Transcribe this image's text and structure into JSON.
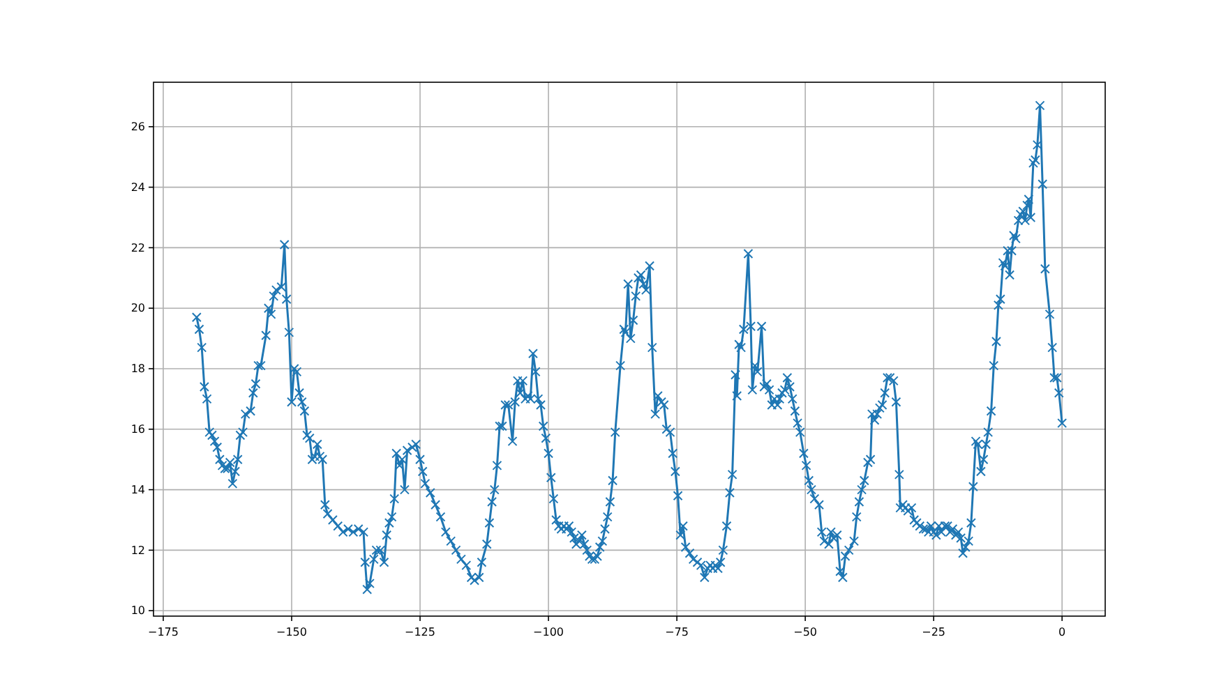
{
  "chart_data": {
    "type": "line",
    "x": [
      -168.5,
      -168,
      -167.5,
      -167,
      -166.5,
      -166,
      -165.5,
      -165,
      -164.5,
      -164,
      -163.5,
      -163,
      -162.5,
      -162,
      -161.5,
      -161,
      -160.5,
      -160,
      -159.5,
      -159,
      -158,
      -157.5,
      -157,
      -156.5,
      -156,
      -155,
      -154.5,
      -154,
      -153.5,
      -153,
      -152,
      -151.4,
      -151,
      -150.5,
      -150,
      -149.5,
      -149,
      -148.5,
      -148,
      -147.5,
      -147,
      -146.5,
      -146,
      -145.5,
      -145,
      -144.5,
      -144,
      -143.5,
      -143,
      -142,
      -141,
      -140,
      -139,
      -138,
      -137,
      -136,
      -135.7,
      -135.3,
      -134.8,
      -134,
      -133.5,
      -132.7,
      -132,
      -131.5,
      -131,
      -130.5,
      -130,
      -129.6,
      -129,
      -128.5,
      -128,
      -127.5,
      -126.5,
      -125.8,
      -125,
      -124.5,
      -124,
      -123,
      -122,
      -121,
      -120,
      -119,
      -118,
      -117,
      -116,
      -115,
      -114.4,
      -113.5,
      -113,
      -112,
      -111.5,
      -111,
      -110.5,
      -110,
      -109.5,
      -109,
      -108.4,
      -107.8,
      -107,
      -106.5,
      -106,
      -105.5,
      -105,
      -104.5,
      -104,
      -103.5,
      -103,
      -102.5,
      -102,
      -101.5,
      -101,
      -100.5,
      -100,
      -99.5,
      -99,
      -98.5,
      -98,
      -97.5,
      -97,
      -96.5,
      -96,
      -95.5,
      -95,
      -94.6,
      -94,
      -93.5,
      -93,
      -92.5,
      -92,
      -91.5,
      -91,
      -90.5,
      -90,
      -89.5,
      -89,
      -88.5,
      -88,
      -87.5,
      -87,
      -86,
      -85.3,
      -85,
      -84.5,
      -84,
      -83.5,
      -83,
      -82.5,
      -82,
      -81.5,
      -81,
      -80.3,
      -79.8,
      -79.2,
      -78.7,
      -78,
      -77.5,
      -77,
      -76.3,
      -75.8,
      -75.3,
      -74.8,
      -74.3,
      -73.8,
      -73.3,
      -72.5,
      -71.8,
      -71,
      -70.3,
      -69.6,
      -69,
      -68.5,
      -68,
      -67.5,
      -67,
      -66.5,
      -66,
      -65.3,
      -64.7,
      -64.2,
      -63.6,
      -63.3,
      -62.9,
      -62.5,
      -62,
      -61.1,
      -60.6,
      -60.3,
      -59.8,
      -59.3,
      -58.5,
      -58,
      -57.5,
      -57,
      -56.5,
      -56,
      -55.4,
      -55,
      -54.5,
      -54,
      -53.5,
      -53,
      -52.5,
      -52,
      -51.5,
      -51,
      -50.3,
      -49.8,
      -49.3,
      -48.8,
      -48.2,
      -47.3,
      -46.8,
      -46.3,
      -45.4,
      -45,
      -44.5,
      -43.8,
      -43.2,
      -42.7,
      -42.2,
      -41.5,
      -40.5,
      -40,
      -39.5,
      -39,
      -38.5,
      -37.8,
      -37.3,
      -37,
      -36.5,
      -36,
      -35.5,
      -35,
      -34.5,
      -34,
      -33.5,
      -32.8,
      -32.3,
      -31.7,
      -31.5,
      -31,
      -30.5,
      -30,
      -29.3,
      -28.8,
      -28.3,
      -27.7,
      -27,
      -26.5,
      -26,
      -25.5,
      -25,
      -24.5,
      -24,
      -23.5,
      -22.8,
      -22.3,
      -21.8,
      -21.3,
      -20.7,
      -20.2,
      -19.7,
      -19.3,
      -18.8,
      -18.2,
      -17.7,
      -17.3,
      -16.8,
      -16.4,
      -15.8,
      -15.3,
      -14.8,
      -14.4,
      -13.8,
      -13.3,
      -12.8,
      -12.4,
      -12,
      -11.5,
      -11.1,
      -10.6,
      -10.2,
      -9.8,
      -9.4,
      -9,
      -8.5,
      -8.1,
      -7.6,
      -7.2,
      -6.8,
      -6.5,
      -6.1,
      -5.6,
      -5.2,
      -4.8,
      -4.3,
      -3.8,
      -3.3,
      -2.4,
      -1.9,
      -1.5,
      -1,
      -0.6,
      0
    ],
    "values": [
      19.7,
      19.3,
      18.7,
      17.4,
      17.0,
      15.9,
      15.8,
      15.6,
      15.4,
      15.0,
      14.8,
      14.7,
      14.7,
      14.9,
      14.2,
      14.6,
      15.0,
      15.8,
      15.9,
      16.5,
      16.6,
      17.2,
      17.5,
      18.1,
      18.1,
      19.1,
      20.0,
      19.8,
      20.4,
      20.6,
      20.7,
      22.1,
      20.3,
      19.2,
      16.9,
      18.0,
      17.9,
      17.2,
      16.9,
      16.6,
      15.8,
      15.7,
      15.0,
      15.1,
      15.5,
      15.1,
      15.0,
      13.5,
      13.2,
      13.0,
      12.8,
      12.6,
      12.7,
      12.6,
      12.7,
      12.6,
      11.6,
      10.7,
      10.9,
      11.7,
      12.0,
      12.0,
      11.6,
      12.5,
      12.9,
      13.1,
      13.7,
      15.2,
      14.8,
      15.0,
      14.0,
      15.3,
      15.4,
      15.5,
      15.0,
      14.6,
      14.2,
      13.9,
      13.5,
      13.1,
      12.6,
      12.3,
      12.0,
      11.7,
      11.5,
      11.1,
      11.0,
      11.1,
      11.6,
      12.2,
      12.9,
      13.6,
      14.0,
      14.8,
      16.1,
      16.1,
      16.8,
      16.8,
      15.6,
      16.9,
      17.6,
      17.2,
      17.6,
      17.0,
      17.1,
      17.0,
      18.5,
      17.9,
      17.0,
      16.8,
      16.1,
      15.7,
      15.2,
      14.4,
      13.7,
      13.0,
      12.8,
      12.7,
      12.8,
      12.7,
      12.8,
      12.6,
      12.4,
      12.2,
      12.3,
      12.5,
      12.2,
      12.0,
      11.8,
      11.7,
      11.7,
      11.8,
      12.1,
      12.3,
      12.7,
      13.1,
      13.6,
      14.3,
      15.9,
      18.1,
      19.3,
      19.2,
      20.8,
      19.0,
      19.6,
      20.4,
      21.0,
      21.1,
      20.8,
      20.6,
      21.4,
      18.7,
      16.5,
      17.1,
      16.9,
      16.8,
      16.0,
      15.9,
      15.2,
      14.6,
      13.8,
      12.5,
      12.8,
      12.1,
      11.9,
      11.7,
      11.6,
      11.5,
      11.1,
      11.4,
      11.5,
      11.4,
      11.5,
      11.4,
      11.6,
      12.0,
      12.8,
      13.9,
      14.5,
      17.8,
      17.1,
      18.8,
      18.7,
      19.3,
      21.8,
      19.4,
      17.3,
      18.1,
      17.9,
      19.4,
      17.4,
      17.5,
      17.3,
      16.8,
      17.0,
      16.8,
      17.0,
      17.2,
      17.3,
      17.7,
      17.4,
      17.0,
      16.6,
      16.2,
      15.9,
      15.2,
      14.8,
      14.3,
      14.0,
      13.7,
      13.5,
      12.6,
      12.3,
      12.2,
      12.6,
      12.4,
      12.5,
      11.3,
      11.1,
      11.8,
      12.0,
      12.3,
      13.1,
      13.6,
      14.0,
      14.3,
      14.9,
      15.0,
      16.5,
      16.3,
      16.5,
      16.7,
      16.8,
      17.2,
      17.7,
      17.7,
      17.6,
      16.9,
      14.5,
      13.4,
      13.5,
      13.4,
      13.3,
      13.4,
      13.0,
      12.9,
      12.8,
      12.7,
      12.7,
      12.6,
      12.8,
      12.6,
      12.5,
      12.8,
      12.6,
      12.8,
      12.8,
      12.6,
      12.7,
      12.5,
      12.6,
      12.4,
      11.9,
      12.1,
      12.3,
      12.9,
      14.1,
      15.6,
      15.5,
      14.6,
      15.0,
      15.5,
      15.9,
      16.6,
      18.1,
      18.9,
      20.1,
      20.3,
      21.5,
      21.4,
      21.9,
      21.1,
      21.9,
      22.4,
      22.3,
      22.9,
      23.1,
      23.2,
      22.9,
      23.4,
      23.6,
      23.0,
      24.8,
      24.9,
      25.4,
      26.7,
      24.1,
      21.3,
      19.8,
      18.7,
      17.7,
      17.7,
      17.2,
      16.2
    ],
    "color": "#1f77b4",
    "marker": "cross",
    "line_style": "solid",
    "grid": true,
    "xlim": [
      -176.9,
      8.4
    ],
    "ylim": [
      9.82,
      27.47
    ],
    "xticks": [
      -175,
      -150,
      -125,
      -100,
      -75,
      -50,
      -25,
      0
    ],
    "yticks": [
      10,
      12,
      14,
      16,
      18,
      20,
      22,
      24,
      26
    ]
  }
}
